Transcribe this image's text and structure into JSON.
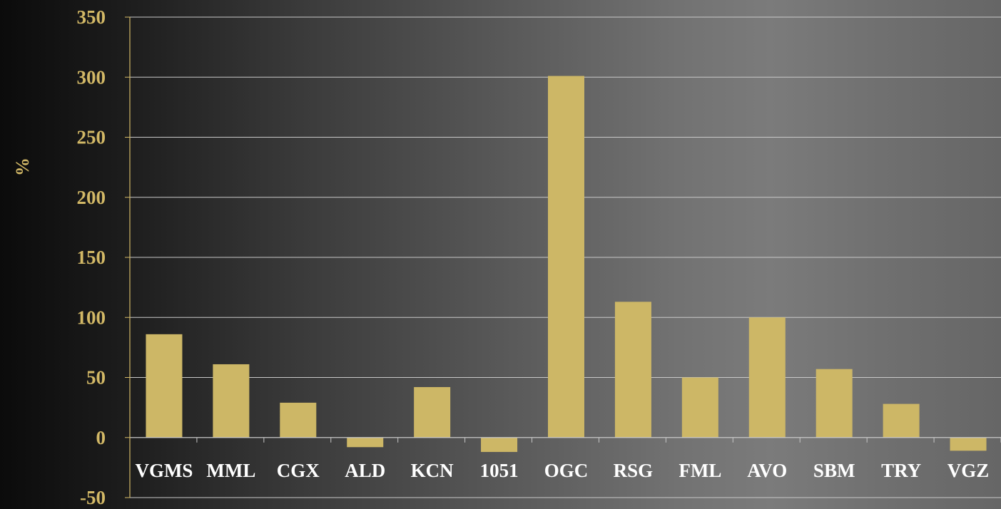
{
  "colors": {
    "bar": "#cdb766",
    "text_yaxis": "#d2b866",
    "text_xaxis": "#ffffff",
    "gridline": "#c9c9c9",
    "axis": "#d2b866"
  },
  "chart_data": {
    "type": "bar",
    "title": "",
    "xlabel": "",
    "ylabel": "%",
    "ylim": [
      -50,
      350
    ],
    "yticks": [
      "-50",
      "0",
      "50",
      "100",
      "150",
      "200",
      "250",
      "300",
      "350"
    ],
    "grid": true,
    "categories": [
      "VGMS",
      "MML",
      "CGX",
      "ALD",
      "KCN",
      "1051",
      "OGC",
      "RSG",
      "FML",
      "AVO",
      "SBM",
      "TRY",
      "VGZ"
    ],
    "values": [
      86,
      61,
      29,
      -8,
      42,
      -12,
      301,
      113,
      50,
      100,
      57,
      28,
      -11
    ]
  }
}
